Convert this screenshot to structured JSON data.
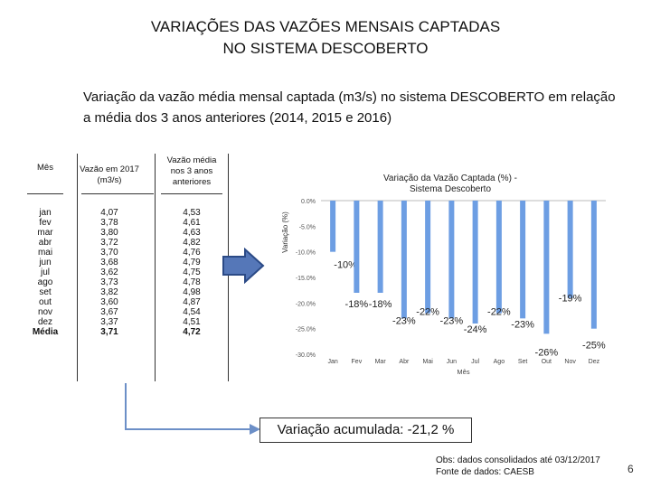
{
  "page": {
    "title_line1": "VARIAÇÕES DAS VAZÕES MENSAIS CAPTADAS",
    "title_line2": "NO SISTEMA DESCOBERTO",
    "subtitle": "Variação da vazão média mensal captada (m3/s) no sistema DESCOBERTO em relação a média dos 3 anos anteriores (2014, 2015 e 2016)",
    "accumulated": "Variação acumulada: -21,2 %",
    "obs_line1": "Obs: dados consolidados até 03/12/2017",
    "obs_line2": "Fonte de dados: CAESB",
    "page_number": "6"
  },
  "table": {
    "headers": [
      "Mês",
      "Vazão em 2017 (m3/s)",
      "Vazão média nos 3 anos anteriores"
    ],
    "months": [
      "jan",
      "fev",
      "mar",
      "abr",
      "mai",
      "jun",
      "jul",
      "ago",
      "set",
      "out",
      "nov",
      "dez",
      "Média"
    ],
    "v2017": [
      "4,07",
      "3,78",
      "3,80",
      "3,72",
      "3,70",
      "3,68",
      "3,62",
      "3,73",
      "3,82",
      "3,60",
      "3,67",
      "3,37",
      "3,71"
    ],
    "vavg": [
      "4,53",
      "4,61",
      "4,63",
      "4,82",
      "4,76",
      "4,79",
      "4,75",
      "4,78",
      "4,98",
      "4,87",
      "4,54",
      "4,51",
      "4,72"
    ]
  },
  "chart_data": {
    "type": "bar",
    "title": "Variação da Vazão Captada (%) - Sistema Descoberto",
    "xlabel": "Mês",
    "ylabel": "Variação (%)",
    "categories": [
      "Jan",
      "Fev",
      "Mar",
      "Abr",
      "Mai",
      "Jun",
      "Jul",
      "Ago",
      "Set",
      "Out",
      "Nov",
      "Dez"
    ],
    "values": [
      -10,
      -18,
      -18,
      -23,
      -22,
      -23,
      -24,
      -22,
      -23,
      -26,
      -19,
      -25
    ],
    "data_labels": [
      "-10%",
      "-18%",
      "-18%",
      "-23%",
      "-22%",
      "-23%",
      "-24%",
      "-22%",
      "-23%",
      "-26%",
      "-19%",
      "-25%"
    ],
    "yticks": [
      "0.0%",
      "-5.0%",
      "-10.0%",
      "-15.0%",
      "-20.0%",
      "-25.0%",
      "-30.0%"
    ],
    "ylim": [
      -30,
      0
    ],
    "color": "#6d9ee3"
  }
}
